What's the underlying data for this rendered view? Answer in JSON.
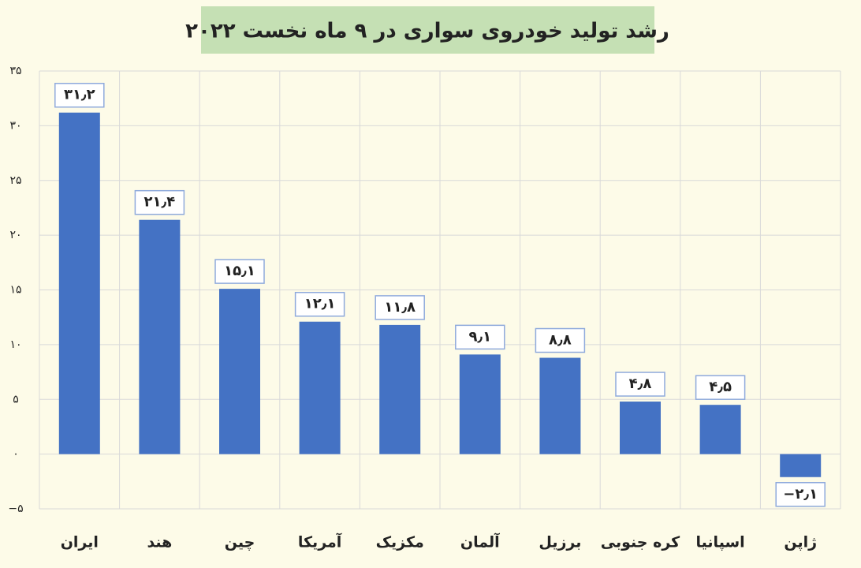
{
  "chart_data": {
    "type": "bar",
    "title": "رشد تولید خودروی سواری در ۹ ماه نخست ۲۰۲۲",
    "categories": [
      "ایران",
      "هند",
      "چین",
      "آمریکا",
      "مکزیک",
      "آلمان",
      "برزیل",
      "کره جنوبی",
      "اسپانیا",
      "ژاپن"
    ],
    "values": [
      31.2,
      21.4,
      15.1,
      12.1,
      11.8,
      9.1,
      8.8,
      4.8,
      4.5,
      -2.1
    ],
    "value_labels": [
      "۳۱٫۲",
      "۲۱٫۴",
      "۱۵٫۱",
      "۱۲٫۱",
      "۱۱٫۸",
      "۹٫۱",
      "۸٫۸",
      "۴٫۸",
      "۴٫۵",
      "−۲٫۱"
    ],
    "color": "#4472c4",
    "ylim": [
      -5,
      35
    ],
    "yticks": [
      {
        "value": -5,
        "label": "−۵"
      },
      {
        "value": 0,
        "label": "۰"
      },
      {
        "value": 5,
        "label": "۵"
      },
      {
        "value": 10,
        "label": "۱۰"
      },
      {
        "value": 15,
        "label": "۱۵"
      },
      {
        "value": 20,
        "label": "۲۰"
      },
      {
        "value": 25,
        "label": "۲۵"
      },
      {
        "value": 30,
        "label": "۳۰"
      },
      {
        "value": 35,
        "label": "۳۵"
      }
    ],
    "grid": true
  }
}
